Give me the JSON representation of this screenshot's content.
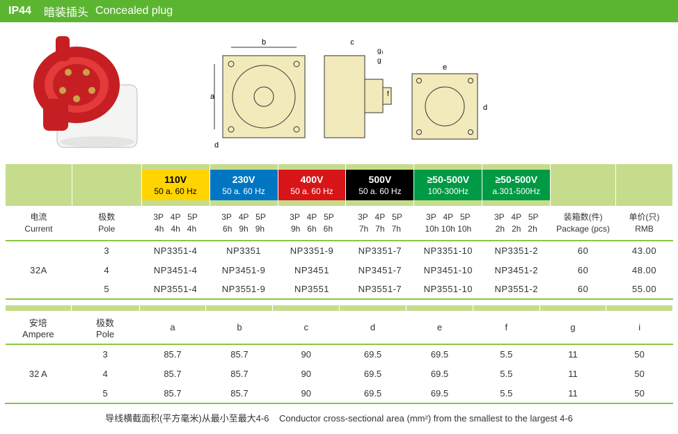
{
  "header": {
    "ip": "IP44",
    "title_cn": "暗装插头",
    "title_en": "Concealed plug"
  },
  "voltage_headers": [
    {
      "bg": "yellow",
      "volt": "110V",
      "freq": "50 a. 60 Hz",
      "txt": "#000"
    },
    {
      "bg": "blue-h",
      "volt": "230V",
      "freq": "50 a. 60 Hz",
      "txt": "#fff"
    },
    {
      "bg": "red-h",
      "volt": "400V",
      "freq": "50 a. 60 Hz",
      "txt": "#fff"
    },
    {
      "bg": "black-h",
      "volt": "500V",
      "freq": "50 a. 60 Hz",
      "txt": "#fff"
    },
    {
      "bg": "green-h",
      "volt": "≥50-500V",
      "freq": "100-300Hz",
      "txt": "#fff"
    },
    {
      "bg": "green-h",
      "volt": "≥50-500V",
      "freq": "a.301-500Hz",
      "txt": "#fff"
    }
  ],
  "subhead_cols": [
    {
      "p": "3P   4P   5P",
      "h": "4h   4h   4h"
    },
    {
      "p": "3P   4P   5P",
      "h": "6h   9h   9h"
    },
    {
      "p": "3P   4P   5P",
      "h": "9h   6h   6h"
    },
    {
      "p": "3P   4P   5P",
      "h": "7h   7h   7h"
    },
    {
      "p": "3P   4P   5P",
      "h": "10h 10h 10h"
    },
    {
      "p": "3P   4P   5P",
      "h": "2h   2h   2h"
    }
  ],
  "labels": {
    "current_cn": "电流",
    "current_en": "Current",
    "ampere_cn": "安培",
    "ampere_en": "Ampere",
    "pole_cn": "极数",
    "pole_en": "Pole",
    "package_cn": "装箱数(件)",
    "package_en": "Package (pcs)",
    "rmb_cn": "单价(只)",
    "rmb_en": "RMB",
    "current_value": "32A",
    "ampere_value": "32 A"
  },
  "part_rows": [
    {
      "pole": "3",
      "cells": [
        "NP3351-4",
        "NP3351",
        "NP3351-9",
        "NP3351-7",
        "NP3351-10",
        "NP3351-2"
      ],
      "pkg": "60",
      "rmb": "43.00"
    },
    {
      "pole": "4",
      "cells": [
        "NP3451-4",
        "NP3451-9",
        "NP3451",
        "NP3451-7",
        "NP3451-10",
        "NP3451-2"
      ],
      "pkg": "60",
      "rmb": "48.00"
    },
    {
      "pole": "5",
      "cells": [
        "NP3551-4",
        "NP3551-9",
        "NP3551",
        "NP3551-7",
        "NP3551-10",
        "NP3551-2"
      ],
      "pkg": "60",
      "rmb": "55.00"
    }
  ],
  "dim_letters": [
    "a",
    "b",
    "c",
    "d",
    "e",
    "f",
    "g",
    "i"
  ],
  "dim_rows": [
    {
      "pole": "3",
      "vals": [
        "85.7",
        "85.7",
        "90",
        "69.5",
        "69.5",
        "5.5",
        "11",
        "50"
      ]
    },
    {
      "pole": "4",
      "vals": [
        "85.7",
        "85.7",
        "90",
        "69.5",
        "69.5",
        "5.5",
        "11",
        "50"
      ]
    },
    {
      "pole": "5",
      "vals": [
        "85.7",
        "85.7",
        "90",
        "69.5",
        "69.5",
        "5.5",
        "11",
        "50"
      ]
    }
  ],
  "footer": {
    "cn": "导线横截面积(平方毫米)从最小至最大4-6",
    "en": "Conductor cross-sectional area (mm²) from the smallest to the largest 4-6"
  },
  "colors": {
    "header_bg": "#5cb531",
    "row_green": "#c6dc8d",
    "rule": "#8cc63f"
  }
}
